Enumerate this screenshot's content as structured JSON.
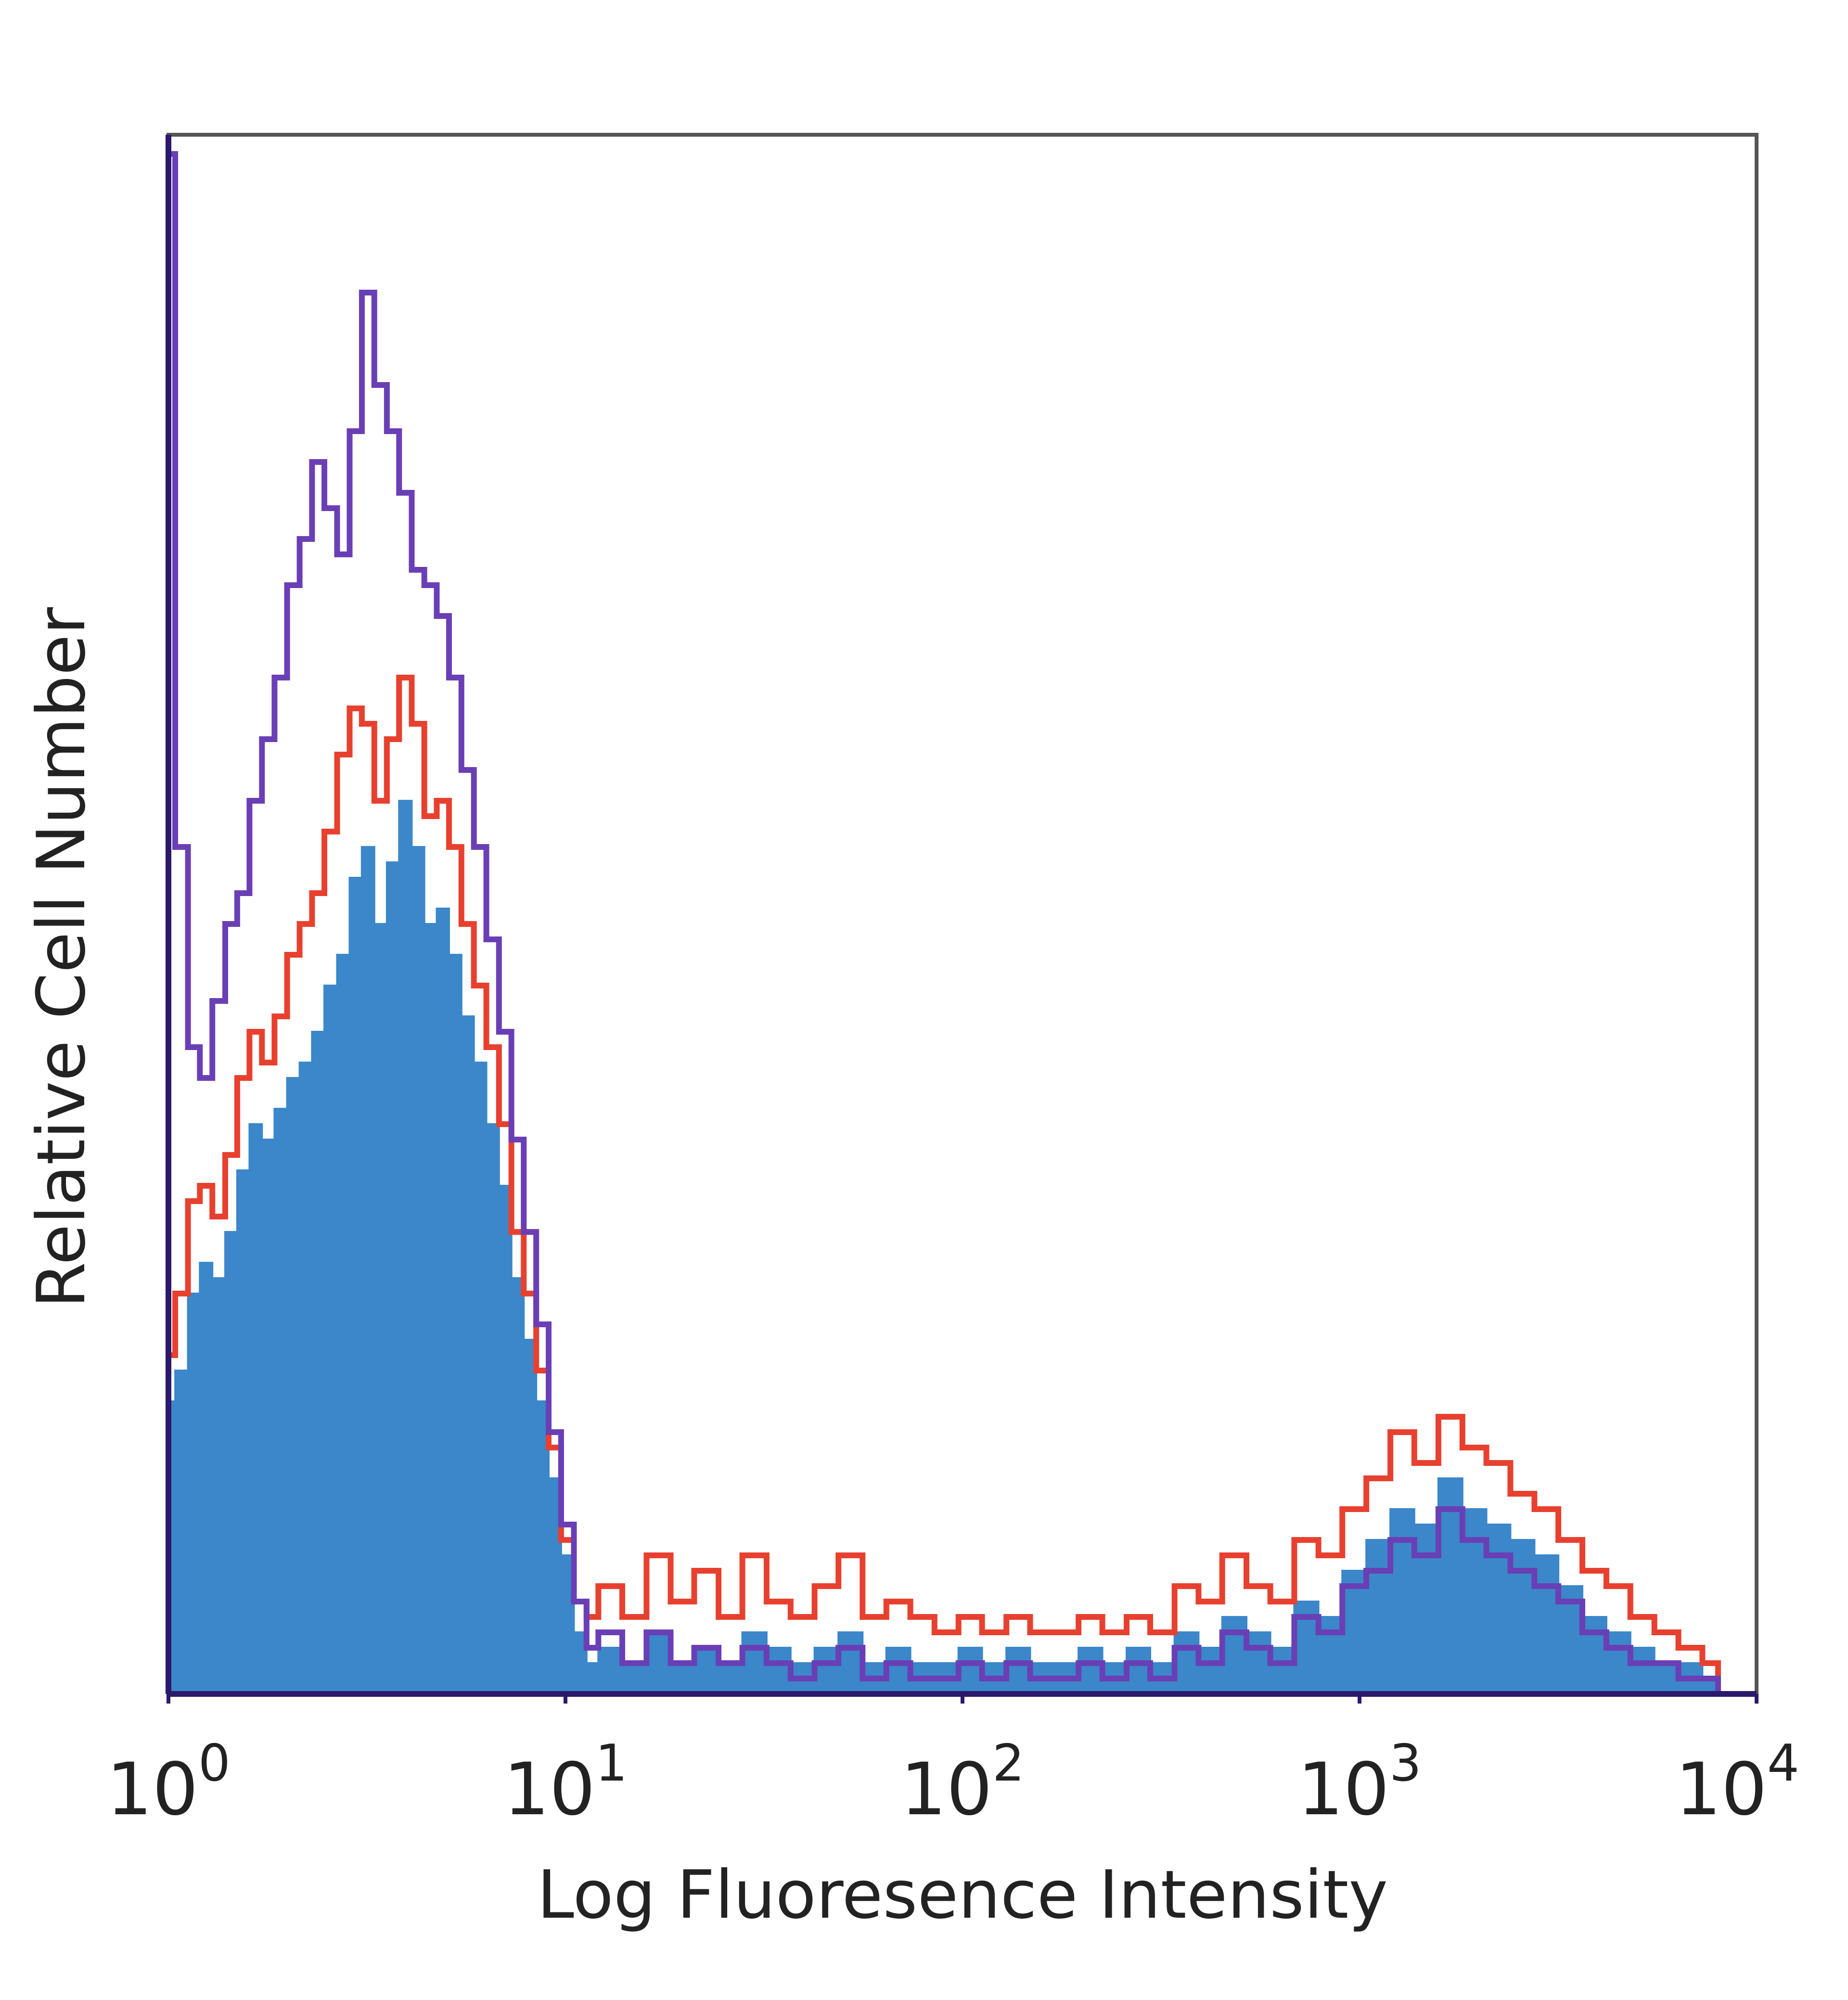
{
  "chart_data": {
    "type": "area",
    "title": "",
    "xlabel": "Log Fluoresence Intensity",
    "ylabel": "Relative Cell Number",
    "xscale": "log",
    "xlim": [
      1,
      10000
    ],
    "ylim": [
      0,
      1
    ],
    "grid": false,
    "legend": "none",
    "x_ticks": [
      {
        "value": 1,
        "base": "10",
        "exp": "0"
      },
      {
        "value": 10,
        "base": "10",
        "exp": "1"
      },
      {
        "value": 100,
        "base": "10",
        "exp": "2"
      },
      {
        "value": 1000,
        "base": "10",
        "exp": "3"
      },
      {
        "value": 10000,
        "base": "10",
        "exp": "4"
      }
    ],
    "series": [
      {
        "style": "filled",
        "color": "#3b87c9",
        "x": [
          1.0,
          1.04,
          1.12,
          1.2,
          1.29,
          1.39,
          1.49,
          1.6,
          1.72,
          1.85,
          1.99,
          2.14,
          2.3,
          2.47,
          2.66,
          2.86,
          3.07,
          3.3,
          3.55,
          3.81,
          4.1,
          4.41,
          4.74,
          5.09,
          5.47,
          5.88,
          6.32,
          6.8,
          7.31,
          7.85,
          8.44,
          9.07,
          9.75,
          10.5,
          11.3,
          12.1,
          13.9,
          16.0,
          18.4,
          21.1,
          24.3,
          27.9,
          32.1,
          36.9,
          42.4,
          48.7,
          56.0,
          64.3,
          73.9,
          85.0,
          97.7,
          112,
          129,
          148,
          170,
          196,
          225,
          259,
          297,
          342,
          393,
          451,
          519,
          596,
          685,
          788,
          905,
          1040,
          1196,
          1374,
          1580,
          1816,
          2087,
          2398,
          2757,
          3168,
          3641,
          4185,
          4810,
          5529,
          6355,
          7304,
          8000
        ],
        "y": [
          0.19,
          0.21,
          0.26,
          0.28,
          0.27,
          0.3,
          0.34,
          0.37,
          0.36,
          0.38,
          0.4,
          0.41,
          0.43,
          0.46,
          0.48,
          0.53,
          0.55,
          0.5,
          0.54,
          0.58,
          0.55,
          0.5,
          0.51,
          0.48,
          0.44,
          0.41,
          0.37,
          0.33,
          0.27,
          0.23,
          0.19,
          0.14,
          0.09,
          0.04,
          0.02,
          0.03,
          0.02,
          0.04,
          0.02,
          0.03,
          0.02,
          0.04,
          0.03,
          0.02,
          0.03,
          0.04,
          0.02,
          0.03,
          0.02,
          0.02,
          0.03,
          0.02,
          0.03,
          0.02,
          0.02,
          0.03,
          0.02,
          0.03,
          0.02,
          0.04,
          0.03,
          0.05,
          0.04,
          0.03,
          0.06,
          0.05,
          0.08,
          0.1,
          0.12,
          0.11,
          0.14,
          0.12,
          0.11,
          0.1,
          0.09,
          0.07,
          0.05,
          0.04,
          0.03,
          0.02,
          0.02,
          0.01,
          0.0
        ]
      },
      {
        "style": "line",
        "color": "#e8402f",
        "x": [
          1.0,
          1.04,
          1.12,
          1.2,
          1.29,
          1.39,
          1.49,
          1.6,
          1.72,
          1.85,
          1.99,
          2.14,
          2.3,
          2.47,
          2.66,
          2.86,
          3.07,
          3.3,
          3.55,
          3.81,
          4.1,
          4.41,
          4.74,
          5.09,
          5.47,
          5.88,
          6.32,
          6.8,
          7.31,
          7.85,
          8.44,
          9.07,
          9.75,
          10.5,
          11.3,
          12.1,
          13.9,
          16.0,
          18.4,
          21.1,
          24.3,
          27.9,
          32.1,
          36.9,
          42.4,
          48.7,
          56.0,
          64.3,
          73.9,
          85.0,
          97.7,
          112,
          129,
          148,
          170,
          196,
          225,
          259,
          297,
          342,
          393,
          451,
          519,
          596,
          685,
          788,
          905,
          1040,
          1196,
          1374,
          1580,
          1816,
          2087,
          2398,
          2757,
          3168,
          3641,
          4185,
          4810,
          5529,
          6355,
          7304,
          8000
        ],
        "y": [
          0.22,
          0.26,
          0.32,
          0.33,
          0.31,
          0.35,
          0.4,
          0.43,
          0.41,
          0.44,
          0.48,
          0.5,
          0.52,
          0.56,
          0.61,
          0.64,
          0.63,
          0.58,
          0.62,
          0.66,
          0.63,
          0.57,
          0.58,
          0.55,
          0.5,
          0.46,
          0.42,
          0.37,
          0.3,
          0.26,
          0.21,
          0.16,
          0.1,
          0.06,
          0.05,
          0.07,
          0.05,
          0.09,
          0.06,
          0.08,
          0.05,
          0.09,
          0.06,
          0.05,
          0.07,
          0.09,
          0.05,
          0.06,
          0.05,
          0.04,
          0.05,
          0.04,
          0.05,
          0.04,
          0.04,
          0.05,
          0.04,
          0.05,
          0.04,
          0.07,
          0.06,
          0.09,
          0.07,
          0.06,
          0.1,
          0.09,
          0.12,
          0.14,
          0.17,
          0.15,
          0.18,
          0.16,
          0.15,
          0.13,
          0.12,
          0.1,
          0.08,
          0.07,
          0.05,
          0.04,
          0.03,
          0.02,
          0.0
        ]
      },
      {
        "style": "line",
        "color": "#6a3fb5",
        "x": [
          1.0,
          1.04,
          1.12,
          1.2,
          1.29,
          1.39,
          1.49,
          1.6,
          1.72,
          1.85,
          1.99,
          2.14,
          2.3,
          2.47,
          2.66,
          2.86,
          3.07,
          3.3,
          3.55,
          3.81,
          4.1,
          4.41,
          4.74,
          5.09,
          5.47,
          5.88,
          6.32,
          6.8,
          7.31,
          7.85,
          8.44,
          9.07,
          9.75,
          10.5,
          11.3,
          12.1,
          13.9,
          16.0,
          18.4,
          21.1,
          24.3,
          27.9,
          32.1,
          36.9,
          42.4,
          48.7,
          56.0,
          64.3,
          73.9,
          85.0,
          97.7,
          112,
          129,
          148,
          170,
          196,
          225,
          259,
          297,
          342,
          393,
          451,
          519,
          596,
          685,
          788,
          905,
          1040,
          1196,
          1374,
          1580,
          1816,
          2087,
          2398,
          2757,
          3168,
          3641,
          4185,
          4810,
          5529,
          6355,
          7304,
          8000
        ],
        "y": [
          1.0,
          0.55,
          0.42,
          0.4,
          0.45,
          0.5,
          0.52,
          0.58,
          0.62,
          0.66,
          0.72,
          0.75,
          0.8,
          0.77,
          0.74,
          0.82,
          0.91,
          0.85,
          0.82,
          0.78,
          0.73,
          0.72,
          0.7,
          0.66,
          0.6,
          0.55,
          0.49,
          0.43,
          0.36,
          0.3,
          0.24,
          0.17,
          0.11,
          0.06,
          0.03,
          0.04,
          0.02,
          0.04,
          0.02,
          0.03,
          0.02,
          0.03,
          0.02,
          0.01,
          0.02,
          0.03,
          0.01,
          0.02,
          0.01,
          0.01,
          0.02,
          0.01,
          0.02,
          0.01,
          0.01,
          0.02,
          0.01,
          0.02,
          0.01,
          0.03,
          0.02,
          0.04,
          0.03,
          0.02,
          0.05,
          0.04,
          0.07,
          0.08,
          0.1,
          0.09,
          0.12,
          0.1,
          0.09,
          0.08,
          0.07,
          0.06,
          0.04,
          0.03,
          0.02,
          0.02,
          0.01,
          0.01,
          0.0
        ]
      }
    ]
  }
}
